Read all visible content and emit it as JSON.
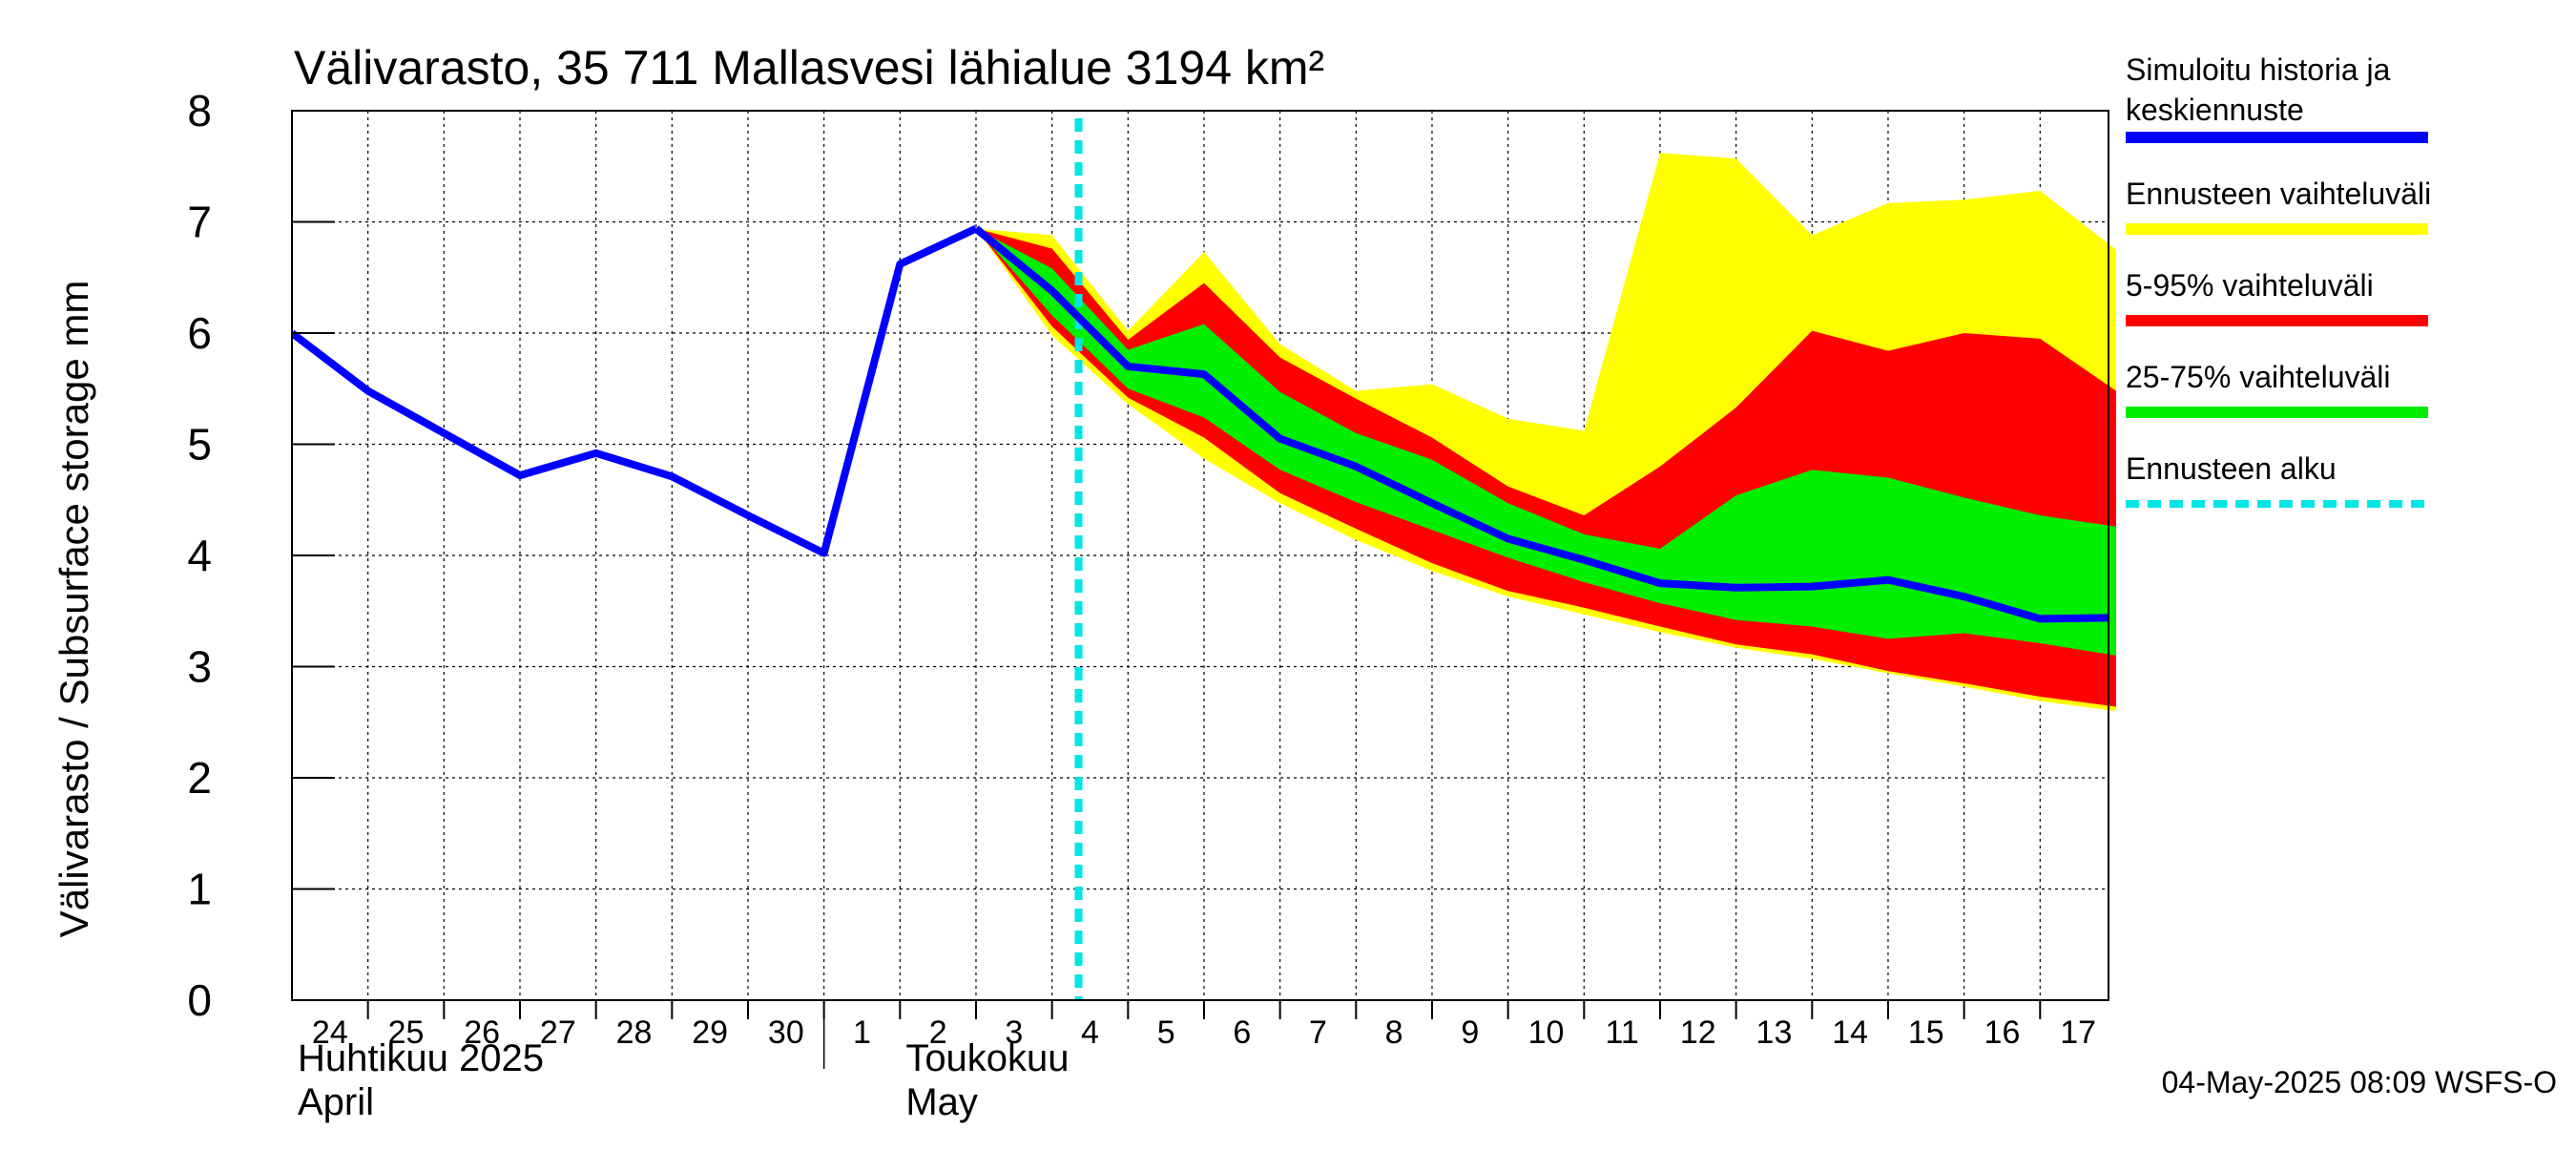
{
  "chart_data": {
    "type": "area",
    "title": "Välivarasto, 35 711 Mallasvesi lähialue 3194 km²",
    "ylabel": "Välivarasto / Subsurface storage  mm",
    "ylim": [
      0,
      8
    ],
    "yticks": [
      "0",
      "1",
      "2",
      "3",
      "4",
      "5",
      "6",
      "7",
      "8"
    ],
    "grid": true,
    "x_start_date": "2025-04-24",
    "x_end_date": "2025-05-17",
    "x_tick_labels": [
      "24",
      "25",
      "26",
      "27",
      "28",
      "29",
      "30",
      "1",
      "2",
      "3",
      "4",
      "5",
      "6",
      "7",
      "8",
      "9",
      "10",
      "11",
      "12",
      "13",
      "14",
      "15",
      "16",
      "17"
    ],
    "month_labels": [
      {
        "line1": "Huhtikuu  2025",
        "line2": "April"
      },
      {
        "line1": "Toukokuu",
        "line2": "May"
      }
    ],
    "forecast_start": "2025-05-04",
    "history": {
      "name": "Simuloitu historia ja keskiennuste",
      "x": [
        "2025-04-24",
        "2025-04-25",
        "2025-04-26",
        "2025-04-27",
        "2025-04-28",
        "2025-04-29",
        "2025-04-30",
        "2025-05-01",
        "2025-05-02",
        "2025-05-03"
      ],
      "values": [
        6.0,
        5.48,
        5.1,
        4.72,
        4.92,
        4.71,
        4.36,
        4.02,
        6.62,
        6.94
      ]
    },
    "forecast_x": [
      "2025-05-03",
      "2025-05-04",
      "2025-05-05",
      "2025-05-06",
      "2025-05-07",
      "2025-05-08",
      "2025-05-09",
      "2025-05-10",
      "2025-05-11",
      "2025-05-12",
      "2025-05-13",
      "2025-05-14",
      "2025-05-15",
      "2025-05-16",
      "2025-05-17",
      "2025-05-18"
    ],
    "bands": [
      {
        "name": "Ennusteen vaihteluväli",
        "color": "#ffff00",
        "upper": [
          6.94,
          6.88,
          6.02,
          6.73,
          5.9,
          5.48,
          5.54,
          5.23,
          5.12,
          7.62,
          7.57,
          6.88,
          7.17,
          7.2,
          7.28,
          6.75
        ],
        "lower": [
          6.94,
          5.98,
          5.36,
          4.87,
          4.47,
          4.14,
          3.86,
          3.63,
          3.47,
          3.31,
          3.17,
          3.07,
          2.94,
          2.82,
          2.69,
          2.6
        ]
      },
      {
        "name": "5-95% vaihteluväli",
        "color": "#ff0000",
        "upper": [
          6.94,
          6.76,
          5.94,
          6.45,
          5.78,
          5.41,
          5.06,
          4.62,
          4.36,
          4.8,
          5.33,
          6.02,
          5.84,
          6.0,
          5.95,
          5.48
        ],
        "lower": [
          6.94,
          6.06,
          5.42,
          5.06,
          4.56,
          4.24,
          3.93,
          3.68,
          3.53,
          3.36,
          3.2,
          3.11,
          2.96,
          2.85,
          2.73,
          2.64
        ]
      },
      {
        "name": "25-75% vaihteluväli",
        "color": "#00ee00",
        "upper": [
          6.94,
          6.58,
          5.85,
          6.08,
          5.47,
          5.1,
          4.86,
          4.47,
          4.19,
          4.06,
          4.54,
          4.77,
          4.7,
          4.52,
          4.36,
          4.26
        ],
        "lower": [
          6.94,
          6.16,
          5.5,
          5.24,
          4.77,
          4.48,
          4.23,
          3.98,
          3.76,
          3.57,
          3.42,
          3.36,
          3.25,
          3.3,
          3.21,
          3.1
        ]
      }
    ],
    "median": {
      "name": "Simuloitu historia ja keskiennuste",
      "values": [
        6.94,
        6.38,
        5.7,
        5.63,
        5.05,
        4.8,
        4.47,
        4.15,
        3.96,
        3.75,
        3.71,
        3.72,
        3.78,
        3.63,
        3.43,
        3.44
      ]
    },
    "legend": {
      "placement": "right",
      "items": [
        {
          "label_line1": "Simuloitu historia ja",
          "label_line2": "keskiennuste",
          "color": "#0000ff",
          "style": "solid"
        },
        {
          "label_line1": "Ennusteen vaihteluväli",
          "label_line2": "",
          "color": "#ffff00",
          "style": "solid"
        },
        {
          "label_line1": "5-95% vaihteluväli",
          "label_line2": "",
          "color": "#ff0000",
          "style": "solid"
        },
        {
          "label_line1": "25-75% vaihteluväli",
          "label_line2": "",
          "color": "#00ee00",
          "style": "solid"
        },
        {
          "label_line1": "Ennusteen alku",
          "label_line2": "",
          "color": "#00e5e5",
          "style": "dashed"
        }
      ]
    },
    "footer": "04-May-2025 08:09 WSFS-O"
  }
}
